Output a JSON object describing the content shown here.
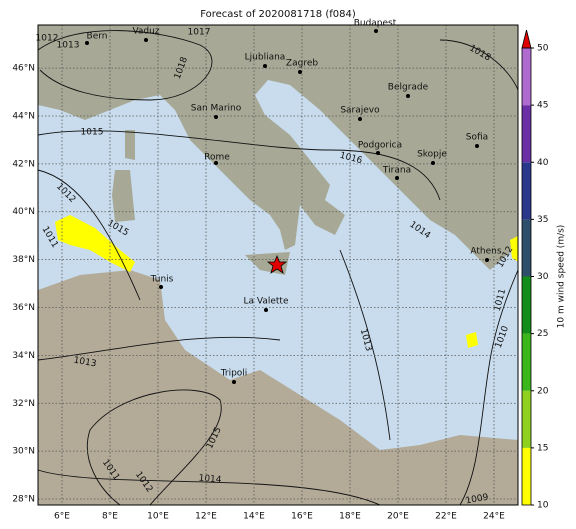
{
  "map": {
    "title": "Forecast of 2020081718 (f084)",
    "xlim": [
      5,
      25
    ],
    "ylim": [
      27.75,
      47.8
    ],
    "xticks": [
      {
        "value": 6,
        "label": "6°E"
      },
      {
        "value": 8,
        "label": "8°E"
      },
      {
        "value": 10,
        "label": "10°E"
      },
      {
        "value": 12,
        "label": "12°E"
      },
      {
        "value": 14,
        "label": "14°E"
      },
      {
        "value": 16,
        "label": "16°E"
      },
      {
        "value": 18,
        "label": "18°E"
      },
      {
        "value": 20,
        "label": "20°E"
      },
      {
        "value": 22,
        "label": "22°E"
      },
      {
        "value": 24,
        "label": "24°E"
      }
    ],
    "yticks": [
      {
        "value": 28,
        "label": "28°N"
      },
      {
        "value": 30,
        "label": "30°N"
      },
      {
        "value": 32,
        "label": "32°N"
      },
      {
        "value": 34,
        "label": "34°N"
      },
      {
        "value": 36,
        "label": "36°N"
      },
      {
        "value": 38,
        "label": "38°N"
      },
      {
        "value": 40,
        "label": "40°N"
      },
      {
        "value": 42,
        "label": "42°N"
      },
      {
        "value": 44,
        "label": "44°N"
      },
      {
        "value": 46,
        "label": "46°N"
      }
    ],
    "cities": [
      "Budapest",
      "Bern",
      "Vaduz",
      "Ljubliana",
      "Zagreb",
      "San Marino",
      "Belgrade",
      "Sarajevo",
      "Sofia",
      "Podgorica",
      "Skopje",
      "Rome",
      "Tirana",
      "Athens",
      "Tunis",
      "La Valette",
      "Tripoli"
    ],
    "isobar_labels": [
      1013,
      1012,
      1017,
      1018,
      1015,
      1016,
      1018,
      1013,
      1012,
      1011,
      1015,
      1013,
      1015,
      1014,
      1011,
      1012,
      1009,
      1011,
      1010,
      1012,
      1014
    ],
    "colorbar": {
      "label": "10 m wind speed (m/s)",
      "lim": [
        10,
        50
      ],
      "ticks": [
        10,
        15,
        20,
        25,
        30,
        35,
        40,
        45,
        50
      ],
      "colors": [
        "#ffff00",
        "#8fd11e",
        "#3bb61b",
        "#138d19",
        "#2d4f6c",
        "#29388a",
        "#6b2fa6",
        "#b06bd0"
      ],
      "extend_color": "#e00000"
    }
  }
}
